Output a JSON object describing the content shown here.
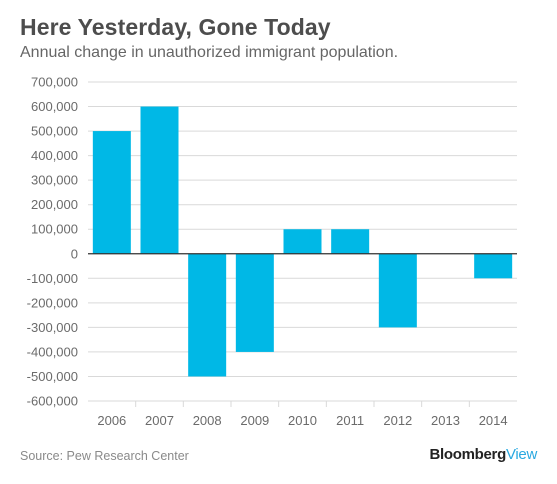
{
  "header": {
    "title": "Here Yesterday, Gone Today",
    "subtitle": "Annual change in unauthorized immigrant population."
  },
  "footer": {
    "source": "Source: Pew Research Center",
    "logo_main": "Bloomberg",
    "logo_accent": "View"
  },
  "colors": {
    "bar": "#00b8e6",
    "grid": "#d9d9d9",
    "zero_line": "#333333",
    "tick_text": "#6b6b6b",
    "logo_accent": "#29a8e0"
  },
  "chart_data": {
    "type": "bar",
    "categories": [
      "2006",
      "2007",
      "2008",
      "2009",
      "2010",
      "2011",
      "2012",
      "2013",
      "2014"
    ],
    "values": [
      500000,
      600000,
      -500000,
      -400000,
      100000,
      100000,
      -300000,
      0,
      -100000
    ],
    "ylim": [
      -600000,
      700000
    ],
    "yticks": [
      700000,
      600000,
      500000,
      400000,
      300000,
      200000,
      100000,
      0,
      -100000,
      -200000,
      -300000,
      -400000,
      -500000,
      -600000
    ],
    "ytick_labels": [
      "700,000",
      "600,000",
      "500,000",
      "400,000",
      "300,000",
      "200,000",
      "100,000",
      "0",
      "-100,000",
      "-200,000",
      "-300,000",
      "-400,000",
      "-500,000",
      "-600,000"
    ],
    "grid": true,
    "legend": "none",
    "title": "Here Yesterday, Gone Today",
    "subtitle": "Annual change in unauthorized immigrant population.",
    "xlabel": "",
    "ylabel": ""
  }
}
